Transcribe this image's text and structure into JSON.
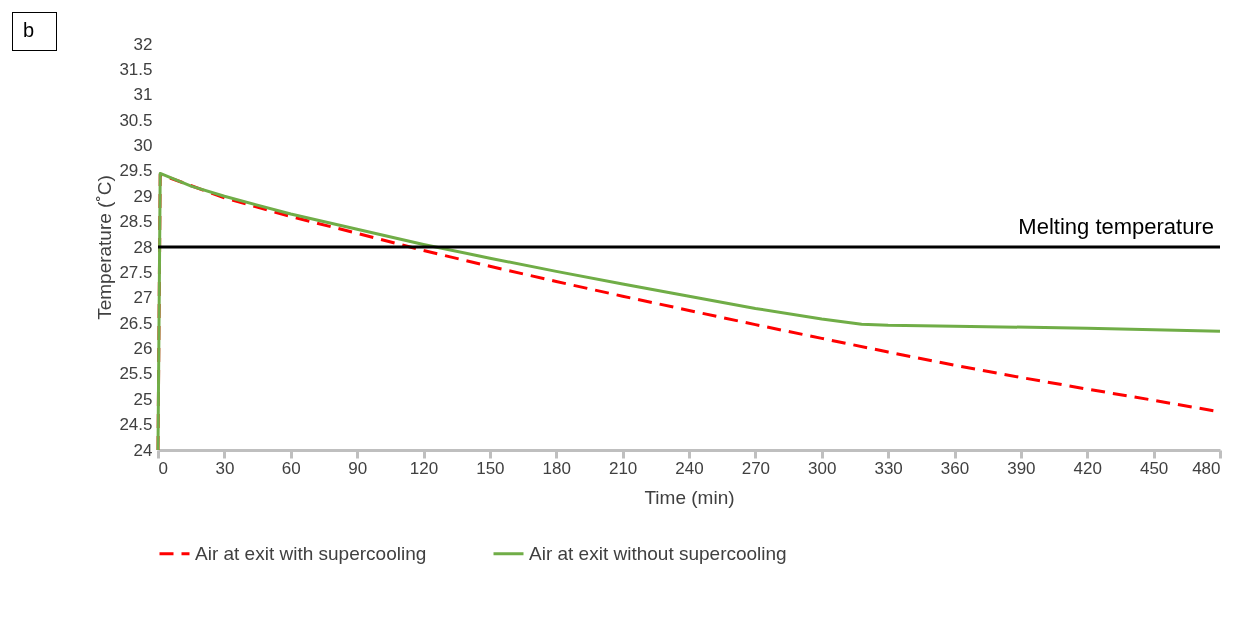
{
  "chart_data": {
    "type": "line",
    "xlabel": "Time (min)",
    "ylabel": "Temperature (˚C)",
    "annotations": [
      "b"
    ],
    "xlim": [
      0,
      480
    ],
    "xticks": [
      0,
      30,
      60,
      90,
      120,
      150,
      180,
      210,
      240,
      270,
      300,
      330,
      360,
      390,
      420,
      450,
      480
    ],
    "ylim": [
      24,
      32
    ],
    "yticks": [
      24,
      24.5,
      25,
      25.5,
      26,
      26.5,
      27,
      27.5,
      28,
      28.5,
      29,
      29.5,
      30,
      30.5,
      31,
      31.5,
      32
    ],
    "grid": false,
    "legend": "bottom",
    "series": [
      {
        "name": "Air at exit with supercooling",
        "color": "#ff0000",
        "line_style": "dashed",
        "x": [
          0,
          1,
          30,
          60,
          90,
          120,
          150,
          180,
          210,
          240,
          270,
          300,
          330,
          360,
          390,
          420,
          450,
          480
        ],
        "values": [
          24,
          29.43,
          28.97,
          28.6,
          28.27,
          27.93,
          27.62,
          27.32,
          27.03,
          26.75,
          26.47,
          26.2,
          25.93,
          25.67,
          25.43,
          25.2,
          24.98,
          24.75
        ]
      },
      {
        "name": "Air at exit without supercooling",
        "color": "#70ad47",
        "line_style": "solid",
        "x": [
          0,
          1,
          15,
          30,
          60,
          90,
          120,
          150,
          180,
          210,
          240,
          270,
          300,
          318,
          330,
          360,
          420,
          480
        ],
        "values": [
          24,
          29.45,
          29.2,
          29.0,
          28.65,
          28.35,
          28.05,
          27.78,
          27.52,
          27.27,
          27.03,
          26.79,
          26.58,
          26.48,
          26.46,
          26.44,
          26.4,
          26.34
        ]
      }
    ],
    "ref_lines": [
      {
        "axis": "y",
        "value": 28,
        "label": "Melting temperature",
        "color": "#000000"
      }
    ]
  }
}
